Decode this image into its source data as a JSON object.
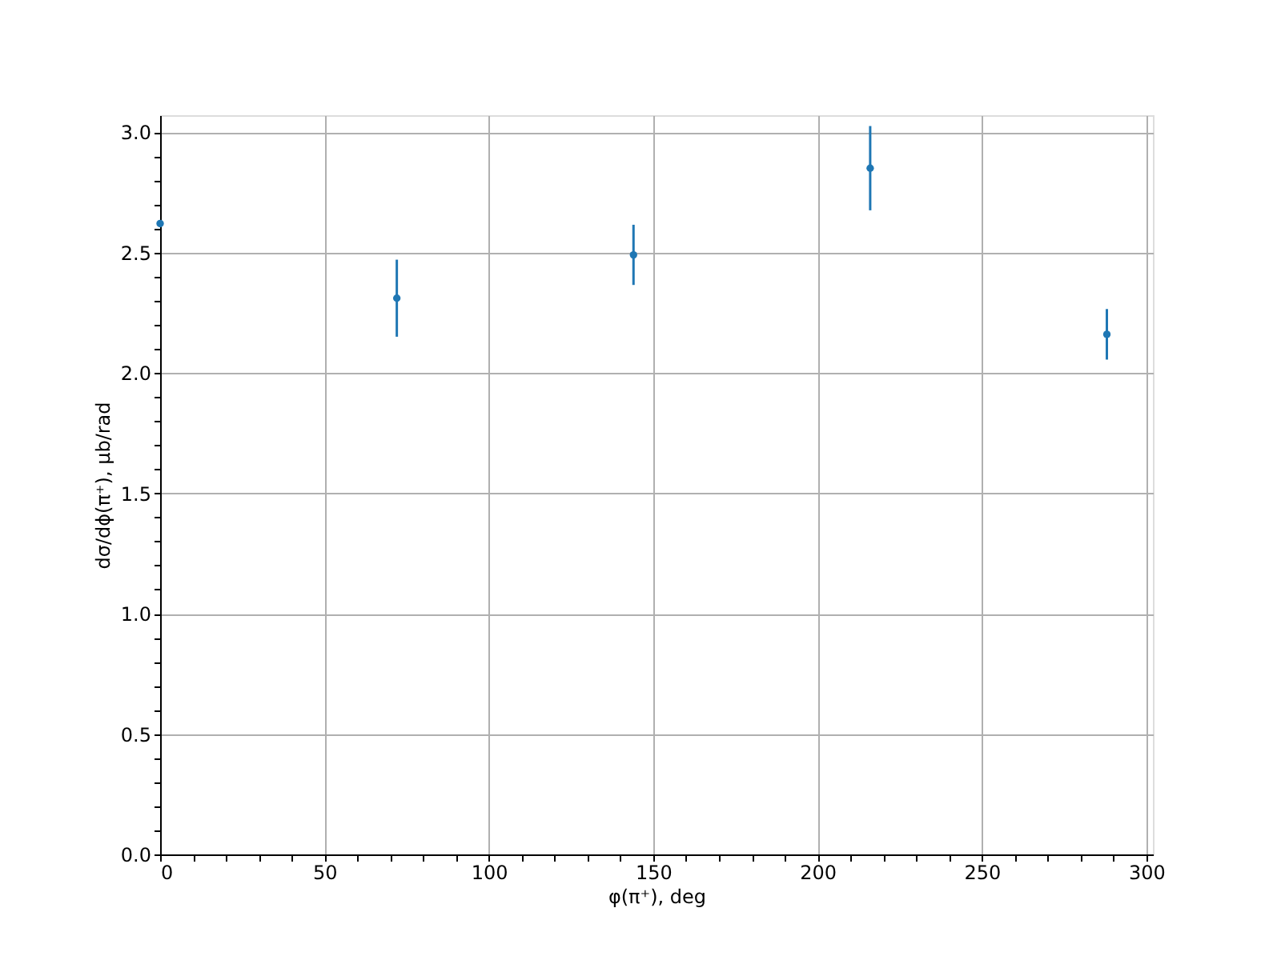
{
  "chart_data": {
    "type": "scatter",
    "xlabel": "φ(π⁺), deg",
    "ylabel": "dσ/dϕ(π⁺), μb/rad",
    "x": [
      0,
      72,
      144,
      216,
      288
    ],
    "series": [
      {
        "color": "#1f77b4",
        "values": [
          2.62,
          2.31,
          2.49,
          2.85,
          2.16
        ],
        "errors": [
          null,
          0.16,
          0.125,
          0.175,
          0.105
        ]
      }
    ],
    "xlim": [
      0,
      302
    ],
    "ylim": [
      0,
      3.07
    ],
    "xticks": [
      0,
      {
        "value": 10,
        "label": null
      },
      {
        "value": 20,
        "label": null
      },
      {
        "value": 30,
        "label": null
      },
      {
        "value": 40,
        "label": null
      },
      50,
      {
        "value": 60,
        "label": null
      },
      {
        "value": 70,
        "label": null
      },
      {
        "value": 80,
        "label": null
      },
      {
        "value": 90,
        "label": null
      },
      100,
      {
        "value": 110,
        "label": null
      },
      {
        "value": 120,
        "label": null
      },
      {
        "value": 130,
        "label": null
      },
      {
        "value": 140,
        "label": null
      },
      150,
      {
        "value": 160,
        "label": null
      },
      {
        "value": 170,
        "label": null
      },
      {
        "value": 180,
        "label": null
      },
      {
        "value": 190,
        "label": null
      },
      200,
      {
        "value": 210,
        "label": null
      },
      {
        "value": 220,
        "label": null
      },
      {
        "value": 230,
        "label": null
      },
      {
        "value": 240,
        "label": null
      },
      250,
      {
        "value": 260,
        "label": null
      },
      {
        "value": 270,
        "label": null
      },
      {
        "value": 280,
        "label": null
      },
      {
        "value": 290,
        "label": null
      },
      300
    ],
    "yticks": [
      {
        "value": 0,
        "label": "0.0"
      },
      {
        "value": 0.1,
        "label": null
      },
      {
        "value": 0.2,
        "label": null
      },
      {
        "value": 0.3,
        "label": null
      },
      {
        "value": 0.4,
        "label": null
      },
      {
        "value": 0.5,
        "label": "0.5"
      },
      {
        "value": 0.6,
        "label": null
      },
      {
        "value": 0.7,
        "label": null
      },
      {
        "value": 0.8,
        "label": null
      },
      {
        "value": 0.9,
        "label": null
      },
      {
        "value": 1,
        "label": "1.0"
      },
      {
        "value": 1.1,
        "label": null
      },
      {
        "value": 1.2,
        "label": null
      },
      {
        "value": 1.3,
        "label": null
      },
      {
        "value": 1.4,
        "label": null
      },
      {
        "value": 1.5,
        "label": "1.5"
      },
      {
        "value": 1.6,
        "label": null
      },
      {
        "value": 1.7,
        "label": null
      },
      {
        "value": 1.8,
        "label": null
      },
      {
        "value": 1.9,
        "label": null
      },
      {
        "value": 2,
        "label": "2.0"
      },
      {
        "value": 2.1,
        "label": null
      },
      {
        "value": 2.2,
        "label": null
      },
      {
        "value": 2.3,
        "label": null
      },
      {
        "value": 2.4,
        "label": null
      },
      {
        "value": 2.5,
        "label": "2.5"
      },
      {
        "value": 2.6,
        "label": null
      },
      {
        "value": 2.7,
        "label": null
      },
      {
        "value": 2.8,
        "label": null
      },
      {
        "value": 2.9,
        "label": null
      },
      {
        "value": 3,
        "label": "3.0"
      }
    ],
    "grid": true,
    "marker": "circle"
  }
}
